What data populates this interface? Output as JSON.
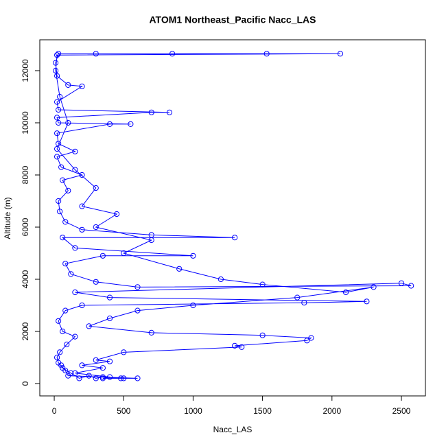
{
  "chart_data": {
    "type": "line",
    "title": "ATOM1 Northeast_Pacific Nacc_LAS",
    "xlabel": "Nacc_LAS",
    "ylabel": "Altitude (m)",
    "color": "#0000ff",
    "markers": "circle",
    "xlim": [
      -104,
      2673
    ],
    "ylim": [
      -474,
      13184
    ],
    "xticks": [
      0,
      500,
      1000,
      1500,
      2000,
      2500
    ],
    "yticks": [
      0,
      2000,
      4000,
      6000,
      8000,
      10000,
      12000
    ],
    "x": [
      480,
      350,
      300,
      250,
      180,
      120,
      60,
      30,
      20,
      40,
      90,
      150,
      60,
      30,
      80,
      200,
      1800,
      2250,
      400,
      150,
      2500,
      2570,
      600,
      300,
      120,
      80,
      350,
      1000,
      150,
      60,
      1300,
      700,
      200,
      80,
      40,
      30,
      100,
      60,
      200,
      50,
      20,
      150,
      30,
      20,
      400,
      550,
      30,
      20,
      700,
      830,
      30,
      20,
      200,
      100,
      20,
      10,
      30,
      300,
      850,
      1530,
      2060,
      20,
      10,
      40,
      100,
      20,
      150,
      300,
      200,
      450,
      300,
      700,
      500,
      900,
      1200,
      1500,
      2100,
      2300,
      1750,
      1000,
      600,
      400,
      250,
      700,
      1500,
      1850,
      1820,
      1300,
      1350,
      500,
      300,
      400,
      200,
      350,
      150,
      400,
      350,
      500,
      600,
      100,
      80,
      50
    ],
    "values": [
      200,
      250,
      200,
      300,
      200,
      400,
      600,
      800,
      1000,
      1200,
      1500,
      1800,
      2000,
      2400,
      2800,
      3000,
      3100,
      3150,
      3300,
      3500,
      3850,
      3750,
      3700,
      3900,
      4200,
      4600,
      4900,
      4900,
      5200,
      5600,
      5600,
      5700,
      5900,
      6200,
      6600,
      7000,
      7400,
      7800,
      8000,
      8300,
      8700,
      8900,
      9200,
      9600,
      9950,
      9950,
      10000,
      10200,
      10400,
      10400,
      10500,
      10800,
      11400,
      11450,
      11800,
      12300,
      12650,
      12650,
      12650,
      12650,
      12650,
      12600,
      12000,
      11000,
      10000,
      9000,
      8200,
      7500,
      6800,
      6500,
      6000,
      5500,
      5000,
      4400,
      4000,
      3800,
      3500,
      3700,
      3300,
      3000,
      2800,
      2500,
      2200,
      1950,
      1850,
      1750,
      1650,
      1450,
      1400,
      1200,
      900,
      850,
      700,
      600,
      400,
      250,
      200,
      200,
      200,
      300,
      500,
      700
    ]
  }
}
